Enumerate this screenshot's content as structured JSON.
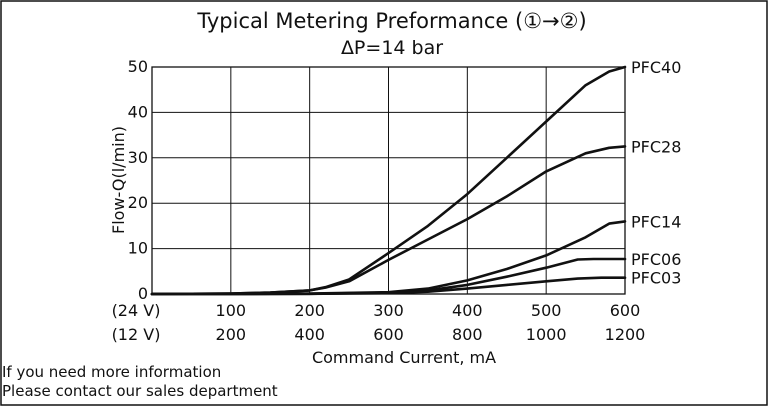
{
  "chart_data": {
    "type": "line",
    "title": "Typical Metering Preformance (①→②)",
    "subtitle": "ΔP=14 bar",
    "ylabel": "Flow-Q(l/min)",
    "xlabel": "Command Current, mA",
    "ylim": [
      0,
      50
    ],
    "yticks": [
      0,
      10,
      20,
      30,
      40,
      50
    ],
    "xlim": [
      0,
      600
    ],
    "xticks_24V": [
      "(24 V)",
      "100",
      "200",
      "300",
      "400",
      "500",
      "600"
    ],
    "xticks_12V": [
      "(12 V)",
      "200",
      "400",
      "600",
      "800",
      "1000",
      "1200"
    ],
    "grid": true,
    "series": [
      {
        "name": "PFC40",
        "x": [
          0,
          100,
          150,
          200,
          220,
          250,
          300,
          350,
          400,
          450,
          500,
          550,
          580,
          600
        ],
        "y": [
          0,
          0.1,
          0.3,
          0.8,
          1.5,
          3.2,
          9,
          15,
          22,
          30,
          38,
          46,
          49,
          50
        ]
      },
      {
        "name": "PFC28",
        "x": [
          0,
          100,
          150,
          200,
          220,
          250,
          300,
          350,
          400,
          450,
          500,
          550,
          580,
          600
        ],
        "y": [
          0,
          0.1,
          0.3,
          0.8,
          1.4,
          2.8,
          7.5,
          12,
          16.5,
          21.5,
          27,
          31,
          32.2,
          32.5
        ]
      },
      {
        "name": "PFC14",
        "x": [
          0,
          100,
          200,
          300,
          350,
          400,
          450,
          500,
          550,
          580,
          600
        ],
        "y": [
          0,
          0,
          0.1,
          0.4,
          1.2,
          3,
          5.5,
          8.5,
          12.5,
          15.5,
          16
        ]
      },
      {
        "name": "PFC06",
        "x": [
          0,
          100,
          200,
          300,
          350,
          400,
          450,
          500,
          540,
          560,
          600
        ],
        "y": [
          0,
          0,
          0.05,
          0.3,
          0.8,
          2,
          3.8,
          5.8,
          7.6,
          7.7,
          7.7
        ]
      },
      {
        "name": "PFC03",
        "x": [
          0,
          100,
          200,
          300,
          350,
          400,
          450,
          500,
          540,
          570,
          600
        ],
        "y": [
          0,
          0,
          0.05,
          0.2,
          0.5,
          1.2,
          2,
          2.8,
          3.4,
          3.6,
          3.6
        ]
      }
    ]
  },
  "footer": {
    "line1": "If you need more information",
    "line2": "Please contact our sales department"
  }
}
